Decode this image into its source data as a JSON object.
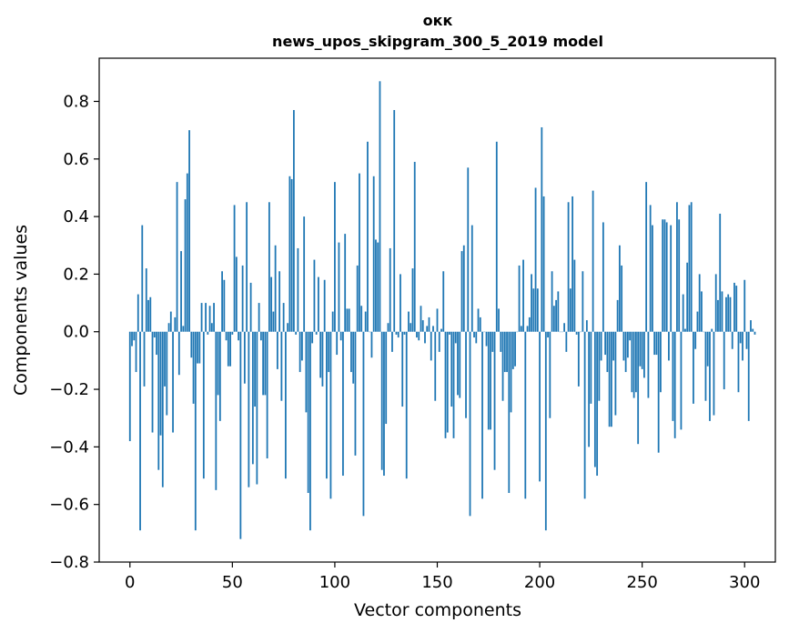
{
  "chart_data": {
    "type": "bar",
    "title": "окк",
    "subtitle": "news_upos_skipgram_300_5_2019 model",
    "xlabel": "Vector components",
    "ylabel": "Components values",
    "xlim": [
      -15,
      315
    ],
    "ylim": [
      -0.8,
      0.95
    ],
    "xticks": [
      0,
      50,
      100,
      150,
      200,
      250,
      300
    ],
    "yticks": [
      -0.8,
      -0.6,
      -0.4,
      -0.2,
      0.0,
      0.2,
      0.4,
      0.6,
      0.8
    ],
    "ytick_labels": [
      "−0.8",
      "−0.6",
      "−0.4",
      "−0.2",
      "0.0",
      "0.2",
      "0.4",
      "0.6",
      "0.8"
    ],
    "bar_color": "#1f77b4",
    "grid": false,
    "legend": "none",
    "series": [
      {
        "values": [
          -0.38,
          -0.05,
          -0.03,
          -0.14,
          0.13,
          -0.69,
          0.37,
          -0.19,
          0.22,
          0.11,
          0.12,
          -0.35,
          -0.02,
          -0.08,
          -0.48,
          -0.36,
          -0.54,
          -0.19,
          -0.29,
          0.03,
          0.07,
          -0.35,
          0.05,
          0.52,
          -0.15,
          0.28,
          0.02,
          0.46,
          0.55,
          0.7,
          -0.09,
          -0.25,
          -0.69,
          -0.11,
          -0.11,
          0.1,
          -0.51,
          0.1,
          -0.01,
          0.09,
          0.03,
          0.1,
          -0.55,
          -0.22,
          -0.31,
          0.21,
          0.18,
          -0.03,
          -0.12,
          -0.12,
          -0.01,
          0.44,
          0.26,
          -0.03,
          -0.72,
          0.23,
          -0.18,
          0.45,
          -0.54,
          0.17,
          -0.46,
          -0.26,
          -0.53,
          0.1,
          -0.03,
          -0.22,
          -0.22,
          -0.44,
          0.45,
          0.19,
          0.07,
          0.3,
          -0.13,
          0.21,
          -0.24,
          0.1,
          -0.51,
          0.03,
          0.54,
          0.53,
          0.77,
          -0.01,
          0.29,
          -0.14,
          -0.1,
          0.4,
          -0.28,
          -0.56,
          -0.69,
          -0.04,
          0.25,
          -0.01,
          0.19,
          -0.16,
          -0.19,
          0.18,
          -0.51,
          -0.14,
          -0.58,
          0.07,
          0.52,
          -0.08,
          0.31,
          -0.03,
          -0.5,
          0.34,
          0.08,
          0.08,
          -0.14,
          -0.18,
          -0.43,
          0.23,
          0.55,
          0.09,
          -0.64,
          0.07,
          0.66,
          0.0,
          -0.09,
          0.54,
          0.32,
          0.31,
          0.87,
          -0.48,
          -0.5,
          -0.32,
          0.03,
          0.29,
          -0.07,
          0.77,
          -0.01,
          -0.02,
          0.2,
          -0.26,
          -0.01,
          -0.51,
          0.07,
          0.03,
          0.22,
          0.59,
          -0.02,
          -0.03,
          0.09,
          0.04,
          -0.04,
          0.02,
          0.05,
          -0.1,
          0.02,
          -0.24,
          0.08,
          -0.07,
          0.01,
          0.21,
          -0.37,
          -0.35,
          -0.01,
          -0.26,
          -0.37,
          -0.04,
          -0.22,
          -0.23,
          0.28,
          0.3,
          -0.3,
          0.57,
          -0.64,
          0.37,
          -0.02,
          -0.04,
          0.08,
          0.05,
          -0.58,
          0.0,
          -0.05,
          -0.34,
          -0.34,
          -0.07,
          -0.48,
          0.66,
          0.08,
          -0.07,
          -0.24,
          -0.14,
          -0.14,
          -0.56,
          -0.28,
          -0.13,
          -0.12,
          0.0,
          0.23,
          0.02,
          0.25,
          -0.58,
          0.02,
          0.05,
          0.2,
          0.15,
          0.5,
          0.15,
          -0.52,
          0.71,
          0.47,
          -0.69,
          -0.02,
          -0.3,
          0.21,
          0.09,
          0.11,
          0.14,
          0.0,
          0.0,
          0.03,
          -0.07,
          0.45,
          0.15,
          0.47,
          0.25,
          -0.01,
          -0.19,
          0.0,
          0.21,
          -0.58,
          0.04,
          -0.4,
          -0.25,
          0.49,
          -0.47,
          -0.5,
          -0.24,
          -0.1,
          0.38,
          -0.08,
          -0.14,
          -0.33,
          -0.33,
          -0.1,
          -0.29,
          0.11,
          0.3,
          0.23,
          -0.1,
          -0.14,
          -0.09,
          -0.03,
          -0.21,
          -0.23,
          -0.21,
          -0.39,
          -0.12,
          -0.13,
          -0.16,
          0.52,
          -0.23,
          0.44,
          0.37,
          -0.08,
          -0.08,
          -0.42,
          -0.21,
          0.39,
          0.39,
          0.38,
          -0.1,
          0.37,
          -0.31,
          -0.37,
          0.45,
          0.39,
          -0.34,
          0.13,
          0.01,
          0.24,
          0.44,
          0.45,
          -0.25,
          -0.06,
          0.07,
          0.2,
          0.14,
          0.0,
          -0.24,
          -0.12,
          -0.31,
          0.01,
          -0.29,
          0.2,
          0.11,
          0.41,
          0.14,
          -0.2,
          0.12,
          0.13,
          0.12,
          -0.06,
          0.17,
          0.16,
          -0.21,
          -0.04,
          -0.1,
          0.18,
          -0.06,
          -0.31,
          0.04,
          0.01,
          -0.01
        ]
      }
    ]
  }
}
